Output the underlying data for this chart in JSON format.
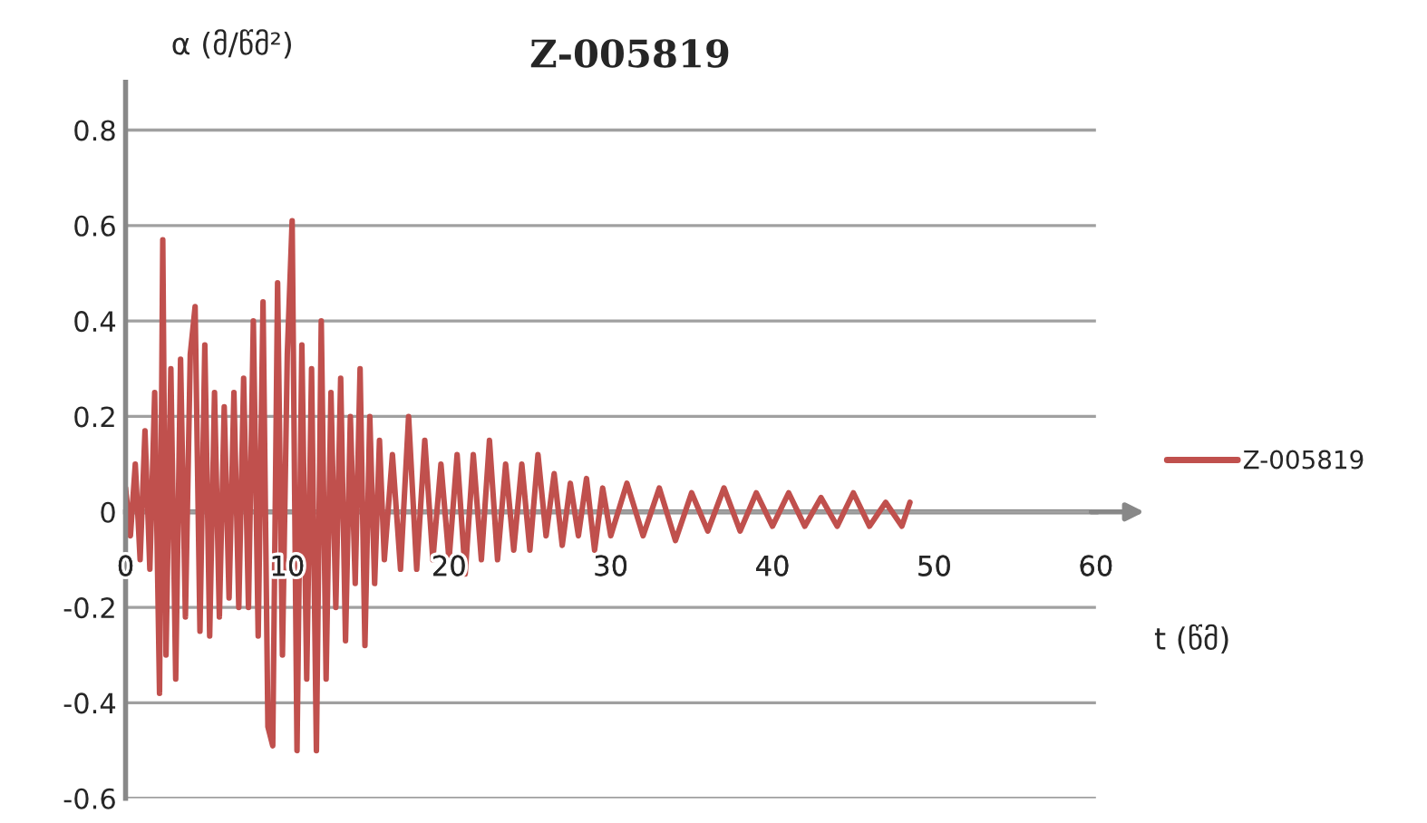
{
  "chart_data": {
    "type": "line",
    "title": "Z-005819",
    "xlabel": "t (წმ)",
    "ylabel": "α (მ/წმ²)",
    "series": [
      {
        "name": "Z-005819",
        "color": "#c0504d",
        "x": [
          0,
          0.3,
          0.6,
          0.9,
          1.2,
          1.5,
          1.8,
          2.1,
          2.3,
          2.5,
          2.8,
          3.1,
          3.4,
          3.7,
          4.0,
          4.3,
          4.6,
          4.9,
          5.2,
          5.5,
          5.8,
          6.1,
          6.4,
          6.7,
          7.0,
          7.3,
          7.6,
          7.9,
          8.2,
          8.5,
          8.8,
          9.1,
          9.4,
          9.7,
          10.0,
          10.3,
          10.6,
          10.9,
          11.2,
          11.5,
          11.8,
          12.1,
          12.4,
          12.7,
          13.0,
          13.3,
          13.6,
          13.9,
          14.2,
          14.5,
          14.8,
          15.1,
          15.4,
          15.7,
          16.0,
          16.5,
          17.0,
          17.5,
          18.0,
          18.5,
          19.0,
          19.5,
          20.0,
          20.5,
          21.0,
          21.5,
          22.0,
          22.5,
          23.0,
          23.5,
          24.0,
          24.5,
          25.0,
          25.5,
          26.0,
          26.5,
          27.0,
          27.5,
          28.0,
          28.5,
          29.0,
          29.5,
          30.0,
          31,
          32,
          33,
          34,
          35,
          36,
          37,
          38,
          39,
          40,
          41,
          42,
          43,
          44,
          45,
          46,
          47,
          48,
          48.5
        ],
        "values": [
          0.05,
          -0.05,
          0.1,
          -0.1,
          0.17,
          -0.12,
          0.25,
          -0.38,
          0.57,
          -0.3,
          0.3,
          -0.35,
          0.32,
          -0.22,
          0.33,
          0.43,
          -0.25,
          0.35,
          -0.26,
          0.25,
          -0.22,
          0.22,
          -0.18,
          0.25,
          -0.2,
          0.28,
          -0.2,
          0.4,
          -0.26,
          0.44,
          -0.45,
          -0.49,
          0.48,
          -0.3,
          0.33,
          0.61,
          -0.5,
          0.35,
          -0.35,
          0.3,
          -0.5,
          0.4,
          -0.35,
          0.25,
          -0.2,
          0.28,
          -0.27,
          0.2,
          -0.15,
          0.3,
          -0.28,
          0.2,
          -0.15,
          0.15,
          -0.1,
          0.12,
          -0.12,
          0.2,
          -0.12,
          0.15,
          -0.1,
          0.1,
          -0.1,
          0.12,
          -0.13,
          0.12,
          -0.1,
          0.15,
          -0.1,
          0.1,
          -0.08,
          0.1,
          -0.08,
          0.12,
          -0.05,
          0.08,
          -0.07,
          0.06,
          -0.05,
          0.07,
          -0.08,
          0.05,
          -0.05,
          0.06,
          -0.05,
          0.05,
          -0.06,
          0.04,
          -0.04,
          0.05,
          -0.04,
          0.04,
          -0.03,
          0.04,
          -0.03,
          0.03,
          -0.03,
          0.04,
          -0.03,
          0.02,
          -0.03,
          0.02
        ]
      }
    ],
    "xlim": [
      0,
      60
    ],
    "xticks": [
      0,
      10,
      20,
      30,
      40,
      50,
      60
    ],
    "ylim": [
      -0.6,
      0.9
    ],
    "yticks": [
      -0.6,
      -0.4,
      -0.2,
      0,
      0.2,
      0.4,
      0.6,
      0.8
    ],
    "grid": "y",
    "legend": "right"
  }
}
